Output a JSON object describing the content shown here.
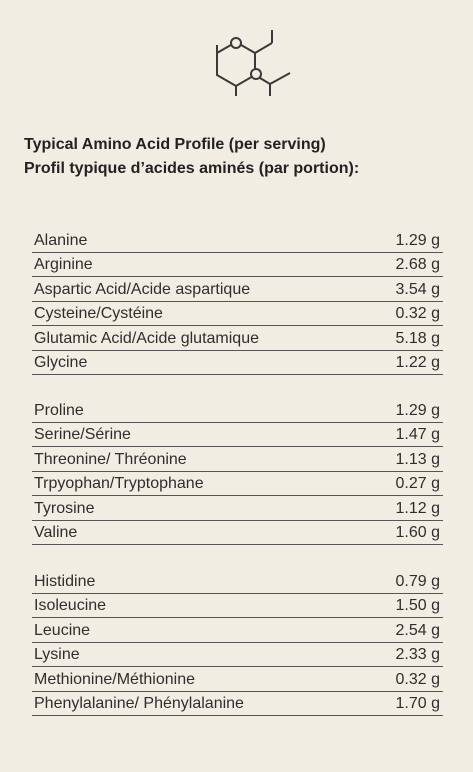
{
  "header": {
    "title_en": "Typical Amino Acid Profile (per serving)",
    "title_fr": "Profil typique d’acides aminés (par portion):"
  },
  "table": {
    "groups": [
      [
        [
          "Alanine",
          "1.29 g"
        ],
        [
          "Arginine",
          "2.68 g"
        ],
        [
          "Aspartic Acid/Acide aspartique",
          "3.54 g"
        ],
        [
          "Cysteine/Cystéine",
          "0.32 g"
        ],
        [
          "Glutamic Acid/Acide glutamique",
          "5.18 g"
        ],
        [
          "Glycine",
          "1.22 g"
        ]
      ],
      [
        [
          "Proline",
          "1.29 g"
        ],
        [
          "Serine/Sérine",
          "1.47 g"
        ],
        [
          "Threonine/ Thréonine",
          "1.13 g"
        ],
        [
          "Trpyophan/Tryptophane",
          "0.27 g"
        ],
        [
          "Tyrosine",
          "1.12 g"
        ],
        [
          "Valine",
          "1.60 g"
        ]
      ],
      [
        [
          "Histidine",
          "0.79 g"
        ],
        [
          "Isoleucine",
          "1.50 g"
        ],
        [
          "Leucine",
          "2.54 g"
        ],
        [
          "Lysine",
          "2.33 g"
        ],
        [
          "Methionine/Méthionine",
          "0.32 g"
        ],
        [
          "Phenylalanine/ Phénylalanine",
          "1.70 g"
        ]
      ]
    ]
  }
}
